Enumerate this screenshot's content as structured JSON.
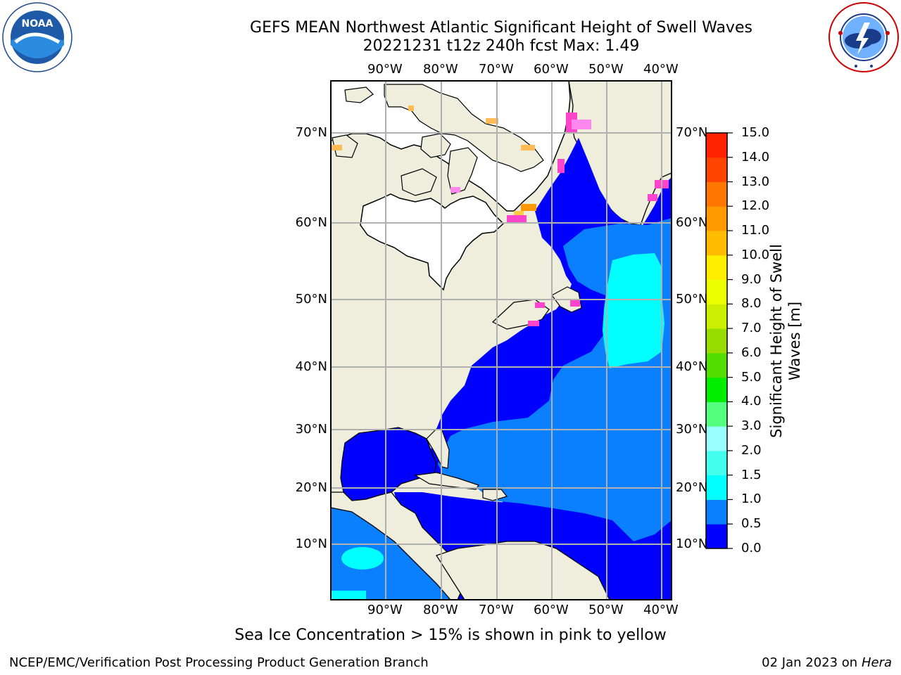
{
  "title": {
    "line1": "GEFS MEAN Northwest Atlantic Significant Height of Swell Waves",
    "line2": "20221231 t12z 240h fcst   Max: 1.49"
  },
  "logos": {
    "left": "NOAA",
    "left_ring": "NATIONAL OCEANIC AND ATMOSPHERIC ADMINISTRATION · U.S. DEPARTMENT OF COMMERCE",
    "right_ring": "NATIONAL WEATHER SERVICE"
  },
  "map": {
    "longitude_labels": [
      "90°W",
      "80°W",
      "70°W",
      "60°W",
      "50°W",
      "40°W"
    ],
    "latitude_labels": [
      "70°N",
      "60°N",
      "50°N",
      "40°N",
      "30°N",
      "20°N",
      "10°N"
    ],
    "grid": true,
    "colors": {
      "land": "#efeddc",
      "ice_free_white": "#ffffff",
      "grid": "#b0b0b0"
    }
  },
  "colorbar": {
    "label": "Significant Height of Swell Waves [m]",
    "ticks": [
      "15.0",
      "14.0",
      "13.0",
      "12.0",
      "11.0",
      "10.0",
      "9.0",
      "8.0",
      "7.0",
      "6.0",
      "5.0",
      "4.0",
      "3.0",
      "2.0",
      "1.5",
      "1.0",
      "0.5",
      "0.0"
    ],
    "colors": [
      "#0000ff",
      "#0a80ff",
      "#00ffff",
      "#44ffee",
      "#99ffff",
      "#55ff80",
      "#00ee00",
      "#55dd00",
      "#99dd00",
      "#ccee00",
      "#eeff00",
      "#ffee00",
      "#ffbb00",
      "#ff9900",
      "#ff7700",
      "#ff4400",
      "#ff2200",
      "#ff0000"
    ]
  },
  "note": "Sea Ice Concentration > 15% is shown in pink to yellow",
  "footer": {
    "left": "NCEP/EMC/Verification Post Processing Product Generation Branch",
    "right_date": "02 Jan 2023 on",
    "right_machine": "Hera"
  }
}
